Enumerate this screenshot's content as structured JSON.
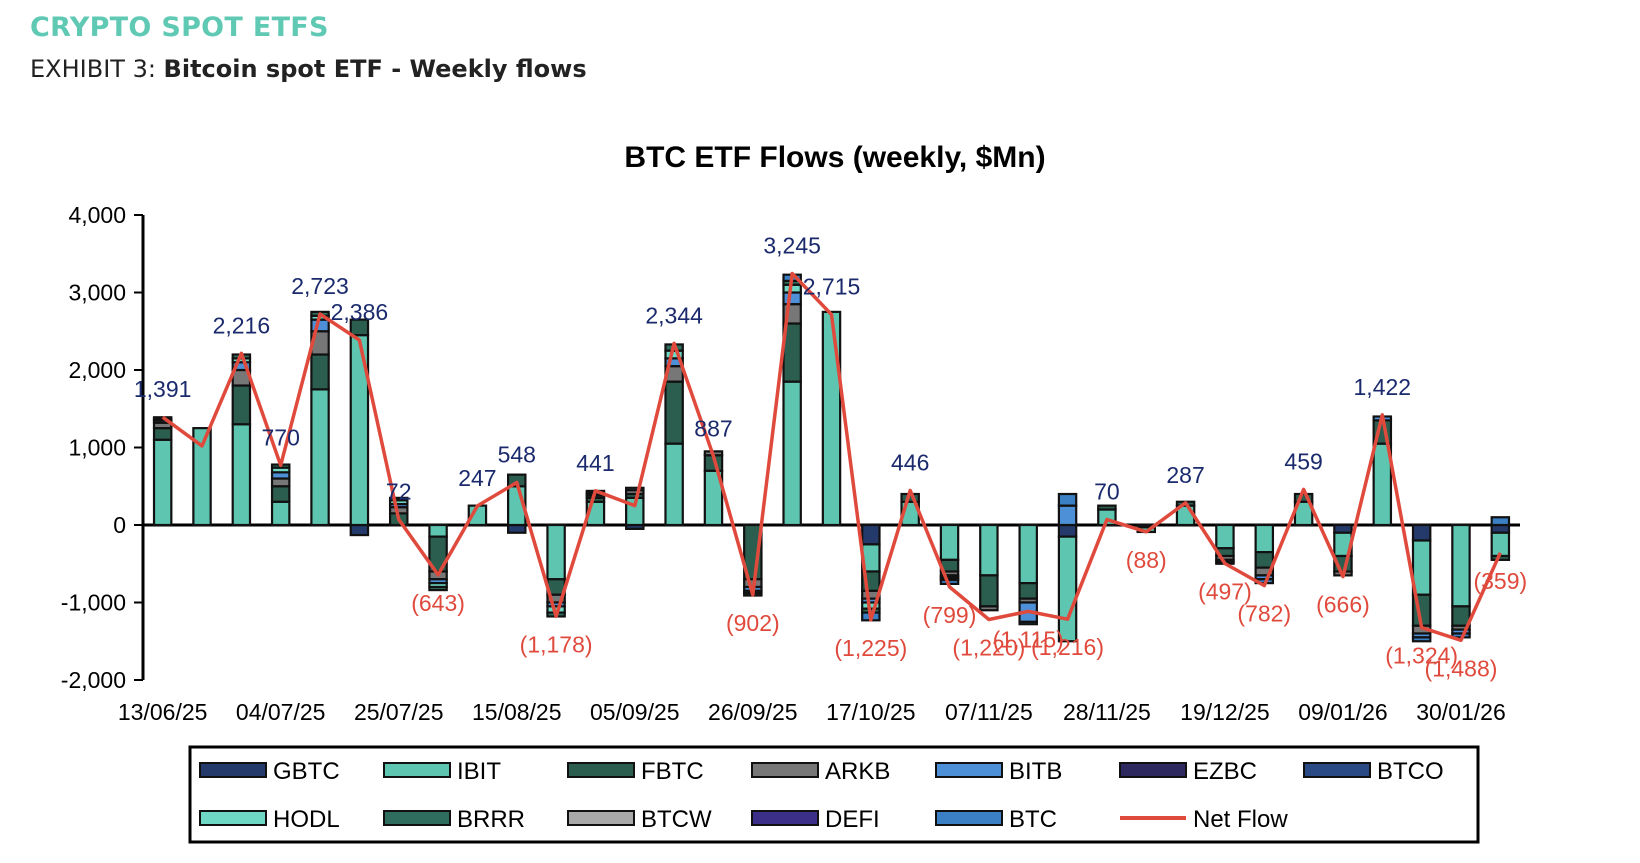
{
  "header": {
    "section_title": "CRYPTO SPOT ETFS",
    "exhibit_label": "EXHIBIT 3: ",
    "exhibit_title": "Bitcoin spot ETF - Weekly flows"
  },
  "colors": {
    "GBTC": "#243a6b",
    "IBIT": "#5dc5b0",
    "FBTC": "#2c5e50",
    "ARKB": "#777777",
    "BITB": "#4e90d8",
    "EZBC": "#2e2a60",
    "BTCO": "#2a4a86",
    "HODL": "#6fd8c4",
    "BRRR": "#2f6e5e",
    "BTCW": "#a9a9a9",
    "DEFI": "#3b2f8a",
    "BTC": "#3b7fc4",
    "net_flow": "#e04a3c",
    "positive_label": "#1a2a6c",
    "negative_label": "#e04a3c"
  },
  "chart_data": {
    "type": "bar",
    "stacked": true,
    "title": "BTC ETF Flows (weekly, $Mn)",
    "ylim": [
      -2000,
      4000
    ],
    "yticks": [
      "4,000",
      "3,000",
      "2,000",
      "1,000",
      "0",
      "-1,000",
      "-2,000"
    ],
    "ytick_values": [
      4000,
      3000,
      2000,
      1000,
      0,
      -1000,
      -2000
    ],
    "xtick_labels": [
      "13/06/25",
      "04/07/25",
      "25/07/25",
      "15/08/25",
      "05/09/25",
      "26/09/25",
      "17/10/25",
      "07/11/25",
      "28/11/25",
      "19/12/25",
      "09/01/26",
      "30/01/26"
    ],
    "xtick_every": 3,
    "net_flow": [
      1391,
      1020,
      2216,
      770,
      2723,
      2386,
      72,
      -643,
      247,
      548,
      -1178,
      441,
      250,
      2344,
      887,
      -902,
      3245,
      2715,
      -1225,
      446,
      -799,
      -1220,
      -1115,
      -1216,
      70,
      -88,
      287,
      -497,
      -782,
      459,
      -666,
      1422,
      -1324,
      -1488,
      -359
    ],
    "net_flow_labels": [
      "1,391",
      "",
      "2,216",
      "770",
      "2,723",
      "2,386",
      "72",
      "(643)",
      "247",
      "548",
      "(1,178)",
      "441",
      "",
      "2,344",
      "887",
      "(902)",
      "3,245",
      "2,715",
      "(1,225)",
      "446",
      "(799)",
      "(1,220)",
      "(1,115)",
      "(1,216)",
      "70",
      "(88)",
      "287",
      "(497)",
      "(782)",
      "459",
      "(666)",
      "1,422",
      "(1,324)",
      "(1,488)",
      "(359)"
    ],
    "series": [
      {
        "name": "GBTC",
        "values": [
          0,
          0,
          0,
          0,
          0,
          -130,
          0,
          0,
          0,
          -100,
          0,
          0,
          -50,
          0,
          0,
          0,
          0,
          0,
          -250,
          0,
          0,
          0,
          0,
          -150,
          0,
          -30,
          0,
          0,
          0,
          0,
          -100,
          0,
          -200,
          0,
          -100
        ]
      },
      {
        "name": "IBIT",
        "values": [
          1100,
          1250,
          1300,
          300,
          1750,
          2450,
          0,
          -150,
          250,
          500,
          -700,
          300,
          350,
          1050,
          700,
          0,
          1850,
          2750,
          -350,
          300,
          -450,
          -650,
          -750,
          -1350,
          200,
          -60,
          250,
          -300,
          -350,
          300,
          -300,
          1050,
          -700,
          -1050,
          -300
        ]
      },
      {
        "name": "FBTC",
        "values": [
          150,
          0,
          500,
          200,
          450,
          200,
          150,
          -450,
          0,
          150,
          -200,
          50,
          50,
          800,
          200,
          -700,
          750,
          0,
          -250,
          100,
          -150,
          -400,
          -200,
          0,
          50,
          0,
          50,
          -100,
          -200,
          100,
          -200,
          300,
          -400,
          -250,
          -50
        ]
      },
      {
        "name": "ARKB",
        "values": [
          70,
          0,
          200,
          100,
          300,
          0,
          80,
          -100,
          0,
          0,
          -100,
          30,
          50,
          200,
          50,
          -100,
          250,
          0,
          -100,
          0,
          -50,
          -50,
          -50,
          0,
          0,
          0,
          0,
          -50,
          -100,
          0,
          -50,
          0,
          -100,
          -50,
          0
        ]
      },
      {
        "name": "BITB",
        "values": [
          30,
          0,
          100,
          80,
          150,
          0,
          40,
          -50,
          0,
          0,
          -50,
          20,
          30,
          100,
          0,
          -50,
          150,
          0,
          -50,
          0,
          -20,
          0,
          -250,
          250,
          0,
          0,
          0,
          -30,
          -50,
          0,
          0,
          50,
          -50,
          -50,
          0
        ]
      },
      {
        "name": "HODL",
        "values": [
          20,
          0,
          50,
          60,
          50,
          0,
          50,
          -50,
          0,
          0,
          -80,
          20,
          0,
          100,
          0,
          -30,
          100,
          0,
          -80,
          0,
          -20,
          0,
          0,
          0,
          0,
          0,
          0,
          0,
          0,
          0,
          0,
          0,
          0,
          0,
          0
        ]
      },
      {
        "name": "BRRR",
        "values": [
          20,
          0,
          50,
          40,
          50,
          0,
          30,
          -40,
          0,
          0,
          -50,
          20,
          0,
          80,
          0,
          -30,
          50,
          0,
          -50,
          0,
          -20,
          0,
          0,
          0,
          0,
          0,
          0,
          0,
          0,
          0,
          0,
          0,
          0,
          0,
          0
        ]
      },
      {
        "name": "BTC",
        "values": [
          0,
          0,
          0,
          0,
          0,
          0,
          0,
          0,
          0,
          0,
          0,
          0,
          0,
          0,
          0,
          0,
          80,
          0,
          -100,
          0,
          -50,
          0,
          -30,
          150,
          0,
          0,
          0,
          -20,
          -50,
          0,
          0,
          0,
          -50,
          -50,
          100
        ]
      }
    ],
    "legend": [
      {
        "name": "GBTC",
        "color_key": "GBTC",
        "kind": "bar"
      },
      {
        "name": "IBIT",
        "color_key": "IBIT",
        "kind": "bar"
      },
      {
        "name": "FBTC",
        "color_key": "FBTC",
        "kind": "bar"
      },
      {
        "name": "ARKB",
        "color_key": "ARKB",
        "kind": "bar"
      },
      {
        "name": "BITB",
        "color_key": "BITB",
        "kind": "bar"
      },
      {
        "name": "EZBC",
        "color_key": "EZBC",
        "kind": "bar"
      },
      {
        "name": "BTCO",
        "color_key": "BTCO",
        "kind": "bar"
      },
      {
        "name": "HODL",
        "color_key": "HODL",
        "kind": "bar"
      },
      {
        "name": "BRRR",
        "color_key": "BRRR",
        "kind": "bar"
      },
      {
        "name": "BTCW",
        "color_key": "BTCW",
        "kind": "bar"
      },
      {
        "name": "DEFI",
        "color_key": "DEFI",
        "kind": "bar"
      },
      {
        "name": "BTC",
        "color_key": "BTC",
        "kind": "bar"
      },
      {
        "name": "Net Flow",
        "color_key": "net_flow",
        "kind": "line"
      }
    ],
    "legend_position": "bottom"
  }
}
